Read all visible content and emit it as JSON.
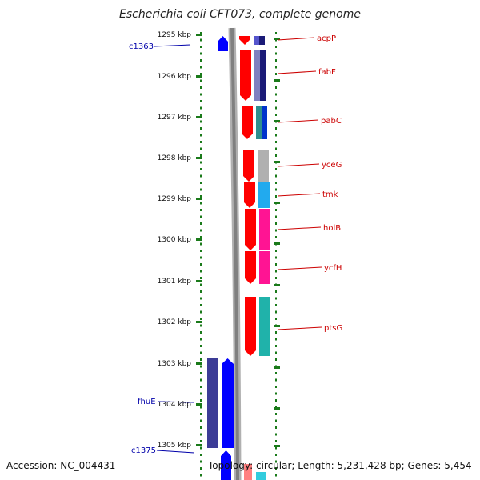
{
  "title": "Escherichia coli CFT073, complete genome",
  "footer": {
    "accession": "Accession: NC_004431",
    "info": "Topology: circular; Length: 5,231,428 bp; Genes: 5,454"
  },
  "colors": {
    "backbone": "#808080",
    "tick": "#1a7a1a",
    "label_left": "#0000aa",
    "label_right": "#cc0000",
    "strand_gene": "#ff0000",
    "minus_gene": "#0000ff",
    "minus_cog": "#3c3c96"
  },
  "ruler": {
    "labels": [
      "1295 kbp",
      "1296 kbp",
      "1297 kbp",
      "1298 kbp",
      "1299 kbp",
      "1300 kbp",
      "1301 kbp",
      "1302 kbp",
      "1303 kbp",
      "1304 kbp",
      "1305 kbp"
    ]
  },
  "right_genes": [
    {
      "name": "acpP",
      "cog": "#5555cc",
      "cog2": "#1a1a77"
    },
    {
      "name": "fabF",
      "cog": "#8080c0",
      "cog2": "#1a1a77"
    },
    {
      "name": "pabC",
      "cog": "#2f8f8f",
      "cog2": "#0033cc"
    },
    {
      "name": "yceG",
      "cog": "#b0b0b0",
      "cog2": ""
    },
    {
      "name": "tmk",
      "cog": "#22aaee",
      "cog2": ""
    },
    {
      "name": "holB",
      "cog": "#ff1493",
      "cog2": ""
    },
    {
      "name": "ycfH",
      "cog": "#ff1493",
      "cog2": ""
    },
    {
      "name": "ptsG",
      "cog": "#20b2aa",
      "cog2": ""
    }
  ],
  "left_genes": [
    {
      "name": "c1363"
    },
    {
      "name": "fhuE"
    },
    {
      "name": "c1375"
    }
  ]
}
